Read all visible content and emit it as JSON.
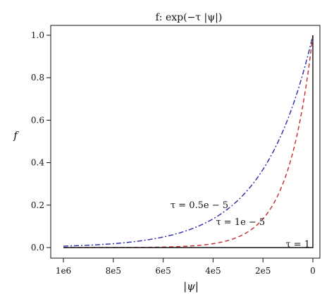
{
  "chart_data": {
    "type": "line",
    "title": "f: exp(−τ |ψ|)",
    "xlabel": "|ψ|",
    "ylabel": "f",
    "xlim": [
      1000000,
      0
    ],
    "ylim": [
      0,
      1
    ],
    "x_reversed": true,
    "grid": false,
    "legend": "none",
    "x_ticks": [
      {
        "value": 1000000,
        "label": "1e6"
      },
      {
        "value": 800000,
        "label": "8e5"
      },
      {
        "value": 600000,
        "label": "6e5"
      },
      {
        "value": 400000,
        "label": "4e5"
      },
      {
        "value": 200000,
        "label": "2e5"
      },
      {
        "value": 0,
        "label": "0"
      }
    ],
    "y_ticks": [
      {
        "value": 0.0,
        "label": "0.0"
      },
      {
        "value": 0.2,
        "label": "0.2"
      },
      {
        "value": 0.4,
        "label": "0.4"
      },
      {
        "value": 0.6,
        "label": "0.6"
      },
      {
        "value": 0.8,
        "label": "0.8"
      },
      {
        "value": 1.0,
        "label": "1.0"
      }
    ],
    "series": [
      {
        "id": "tau-0.5e-5",
        "tau": 5e-06,
        "color": "#2a2aa8",
        "style": "dashdot",
        "x": [
          1000000,
          900000,
          800000,
          700000,
          600000,
          500000,
          400000,
          300000,
          200000,
          150000,
          100000,
          50000,
          0
        ],
        "y": [
          0.007,
          0.011,
          0.018,
          0.03,
          0.05,
          0.082,
          0.135,
          0.223,
          0.368,
          0.472,
          0.607,
          0.779,
          1.0
        ]
      },
      {
        "id": "tau-1e-5",
        "tau": 1e-05,
        "color": "#c42a2a",
        "style": "dashed",
        "x": [
          1000000,
          800000,
          600000,
          500000,
          400000,
          300000,
          250000,
          200000,
          150000,
          100000,
          75000,
          50000,
          25000,
          0
        ],
        "y": [
          0.0,
          0.0003,
          0.002,
          0.007,
          0.018,
          0.05,
          0.082,
          0.135,
          0.223,
          0.368,
          0.472,
          0.607,
          0.779,
          1.0
        ]
      },
      {
        "id": "tau-1",
        "tau": 1,
        "color": "#111111",
        "style": "solid",
        "x": [
          1000000,
          0,
          0
        ],
        "y": [
          0.0,
          0.0,
          1.0
        ]
      }
    ],
    "annotations": [
      {
        "series": "tau-0.5e-5",
        "text": "τ = 0.5e − 5",
        "x": 455000,
        "y": 0.2
      },
      {
        "series": "tau-1e-5",
        "text": "τ = 1e − 5",
        "x": 290000,
        "y": 0.12
      },
      {
        "series": "tau-1",
        "text": "τ = 1",
        "x": 60000,
        "y": 0.015
      }
    ]
  }
}
